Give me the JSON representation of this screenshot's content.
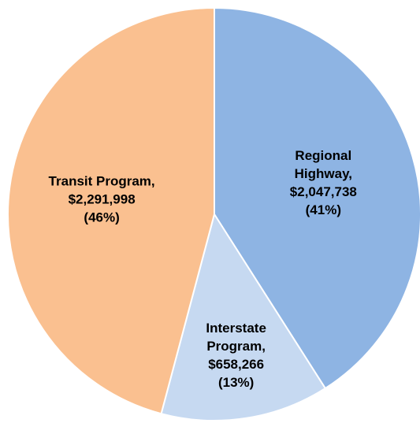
{
  "chart_data": {
    "type": "pie",
    "categories": [
      "Regional Highway,",
      "Interstate Program,",
      "Transit Program,"
    ],
    "values": [
      2047738,
      658266,
      2291998
    ],
    "value_labels": [
      "$2,047,738",
      "$658,266",
      "$2,291,998"
    ],
    "percents": [
      41,
      13,
      46
    ],
    "percent_labels": [
      "(41%)",
      "(13%)",
      "(46%)"
    ],
    "colors": [
      "#8eb4e3",
      "#c6d9f1",
      "#fac090"
    ]
  }
}
